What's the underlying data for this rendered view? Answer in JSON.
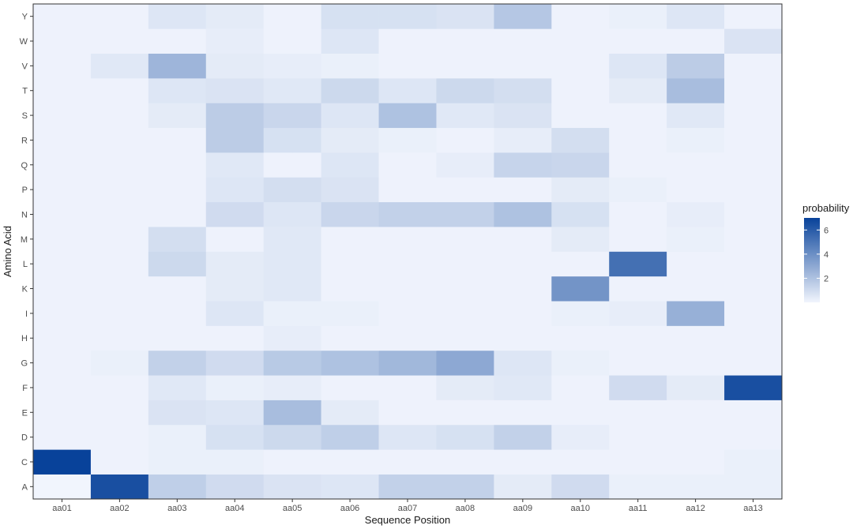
{
  "chart_data": {
    "type": "heatmap",
    "xlabel": "Sequence Position",
    "ylabel": "Amino Acid",
    "x_categories": [
      "aa01",
      "aa02",
      "aa03",
      "aa04",
      "aa05",
      "aa06",
      "aa07",
      "aa08",
      "aa09",
      "aa10",
      "aa11",
      "aa12",
      "aa13"
    ],
    "y_categories": [
      "A",
      "C",
      "D",
      "E",
      "F",
      "G",
      "H",
      "I",
      "K",
      "L",
      "M",
      "N",
      "P",
      "Q",
      "R",
      "S",
      "T",
      "V",
      "W",
      "Y"
    ],
    "values": [
      [
        0.0,
        6.5,
        1.5,
        1.0,
        0.7,
        0.6,
        1.4,
        1.4,
        0.4,
        1.0,
        0.2,
        0.2,
        0.2
      ],
      [
        7.0,
        0.1,
        0.2,
        0.2,
        0.1,
        0.1,
        0.1,
        0.1,
        0.1,
        0.1,
        0.1,
        0.1,
        0.2
      ],
      [
        0.1,
        0.1,
        0.2,
        0.8,
        1.1,
        1.5,
        0.6,
        0.8,
        1.4,
        0.3,
        0.1,
        0.1,
        0.1
      ],
      [
        0.1,
        0.1,
        0.7,
        0.6,
        2.2,
        0.4,
        0.1,
        0.1,
        0.1,
        0.1,
        0.1,
        0.1,
        0.1
      ],
      [
        0.1,
        0.1,
        0.5,
        0.2,
        0.3,
        0.1,
        0.1,
        0.4,
        0.5,
        0.1,
        1.0,
        0.4,
        6.5
      ],
      [
        0.1,
        0.2,
        1.4,
        1.0,
        1.7,
        2.0,
        2.4,
        3.0,
        0.6,
        0.2,
        0.1,
        0.1,
        0.1
      ],
      [
        0.1,
        0.1,
        0.1,
        0.1,
        0.3,
        0.1,
        0.1,
        0.1,
        0.1,
        0.1,
        0.1,
        0.1,
        0.1
      ],
      [
        0.1,
        0.1,
        0.1,
        0.6,
        0.2,
        0.2,
        0.1,
        0.1,
        0.1,
        0.2,
        0.3,
        2.7,
        0.1
      ],
      [
        0.1,
        0.1,
        0.1,
        0.4,
        0.5,
        0.1,
        0.1,
        0.1,
        0.1,
        3.8,
        0.1,
        0.1,
        0.1
      ],
      [
        0.1,
        0.1,
        1.1,
        0.4,
        0.5,
        0.1,
        0.1,
        0.1,
        0.1,
        0.1,
        5.2,
        0.1,
        0.1
      ],
      [
        0.1,
        0.1,
        0.9,
        0.1,
        0.5,
        0.1,
        0.1,
        0.1,
        0.1,
        0.4,
        0.1,
        0.2,
        0.1
      ],
      [
        0.1,
        0.1,
        0.1,
        1.0,
        0.6,
        1.2,
        1.4,
        1.4,
        2.0,
        0.8,
        0.1,
        0.3,
        0.1
      ],
      [
        0.1,
        0.1,
        0.1,
        0.6,
        0.9,
        0.7,
        0.1,
        0.1,
        0.1,
        0.4,
        0.2,
        0.1,
        0.1
      ],
      [
        0.1,
        0.1,
        0.1,
        0.5,
        0.1,
        0.6,
        0.1,
        0.3,
        1.3,
        1.2,
        0.1,
        0.1,
        0.1
      ],
      [
        0.1,
        0.1,
        0.1,
        1.6,
        0.8,
        0.4,
        0.2,
        0.1,
        0.3,
        0.9,
        0.1,
        0.2,
        0.1
      ],
      [
        0.1,
        0.1,
        0.4,
        1.6,
        1.2,
        0.6,
        2.0,
        0.5,
        0.7,
        0.1,
        0.1,
        0.5,
        0.1
      ],
      [
        0.1,
        0.1,
        0.6,
        0.7,
        0.5,
        1.1,
        0.6,
        1.1,
        0.9,
        0.1,
        0.4,
        2.2,
        0.1
      ],
      [
        0.1,
        0.5,
        2.5,
        0.4,
        0.3,
        0.2,
        0.1,
        0.1,
        0.1,
        0.1,
        0.6,
        1.6,
        0.1
      ],
      [
        0.1,
        0.1,
        0.1,
        0.3,
        0.1,
        0.6,
        0.1,
        0.1,
        0.1,
        0.1,
        0.1,
        0.1,
        0.7
      ],
      [
        0.1,
        0.1,
        0.6,
        0.4,
        0.1,
        0.8,
        0.8,
        0.7,
        1.8,
        0.1,
        0.2,
        0.6,
        0.1
      ]
    ],
    "color_scale": {
      "low": "#f1f5fd",
      "high": "#08429a",
      "min": 0,
      "max": 7
    },
    "legend": {
      "title": "probability",
      "ticks": [
        "2",
        "4",
        "6"
      ],
      "tick_values": [
        2,
        4,
        6
      ],
      "position": "right"
    },
    "grid": true
  }
}
